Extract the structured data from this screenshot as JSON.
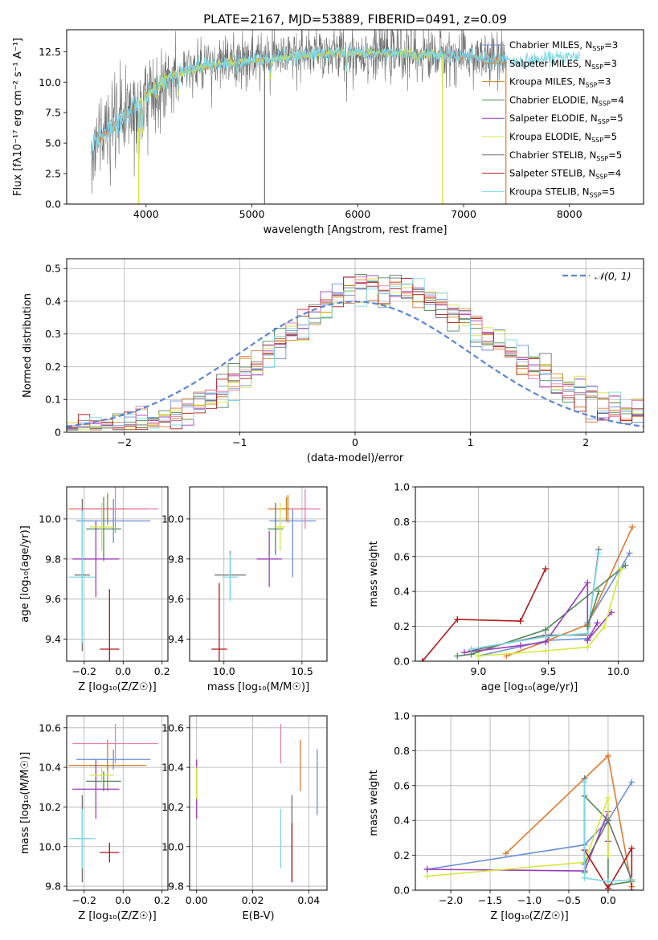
{
  "title": "PLATE=2167, MJD=53889, FIBERID=0491, z=0.09",
  "colors": {
    "Chabrier MILES": "#6a8fd8",
    "Salpeter MILES": "#e07a30",
    "Kroupa MILES": "#c48a1c",
    "Chabrier ELODIE": "#4d8a5a",
    "Salpeter ELODIE": "#9b3bbd",
    "Kroupa ELODIE": "#d4ea3a",
    "Chabrier STELIB": "#6e6e6e",
    "Salpeter STELIB": "#b01818",
    "Kroupa STELIB": "#7dd8e6",
    "normal": "#5b86d6",
    "extra_pink": "#e880a8"
  },
  "legend": [
    {
      "model": "Chabrier MILES",
      "label": "Chabrier MILES, N",
      "sub": "SSP",
      "eq": "=3"
    },
    {
      "model": "Salpeter MILES",
      "label": "Salpeter MILES, N",
      "sub": "SSP",
      "eq": "=3"
    },
    {
      "model": "Kroupa MILES",
      "label": "Kroupa MILES, N",
      "sub": "SSP",
      "eq": "=3"
    },
    {
      "model": "Chabrier ELODIE",
      "label": "Chabrier ELODIE, N",
      "sub": "SSP",
      "eq": "=4"
    },
    {
      "model": "Salpeter ELODIE",
      "label": "Salpeter ELODIE, N",
      "sub": "SSP",
      "eq": "=5"
    },
    {
      "model": "Kroupa ELODIE",
      "label": "Kroupa ELODIE, N",
      "sub": "SSP",
      "eq": "=5"
    },
    {
      "model": "Chabrier STELIB",
      "label": "Chabrier STELIB, N",
      "sub": "SSP",
      "eq": "=5"
    },
    {
      "model": "Salpeter STELIB",
      "label": "Salpeter STELIB, N",
      "sub": "SSP",
      "eq": "=4"
    },
    {
      "model": "Kroupa STELIB",
      "label": "Kroupa STELIB, N",
      "sub": "SSP",
      "eq": "=5"
    }
  ],
  "chart_data": [
    {
      "id": "spectrum",
      "type": "line",
      "xlabel": "wavelength [Angstrom, rest frame]",
      "ylabel": "Flux [fλ10⁻¹⁷ erg cm⁻² s⁻¹ A⁻¹]",
      "xlim": [
        3250,
        8700
      ],
      "ylim": [
        0,
        14.3
      ],
      "xticks": [
        4000,
        5000,
        6000,
        7000,
        8000
      ],
      "yticks": [
        0.0,
        2.5,
        5.0,
        7.5,
        10.0,
        12.5
      ],
      "grid": false,
      "legend_position": "right",
      "continuum_knots": {
        "x": [
          3500,
          3600,
          3700,
          3800,
          3900,
          4000,
          4200,
          4400,
          4700,
          5000,
          5300,
          5600,
          6000,
          6300,
          6600,
          6900,
          7200,
          7500,
          7800,
          8100,
          8300
        ],
        "y": [
          5.0,
          5.8,
          6.5,
          7.2,
          8.0,
          9.0,
          10.4,
          11.0,
          11.5,
          11.8,
          12.0,
          12.3,
          12.4,
          12.4,
          12.3,
          12.2,
          11.9,
          11.7,
          11.9,
          12.2,
          12.4
        ]
      },
      "absorption_features": [
        {
          "x": 3934,
          "depth": 3.2
        },
        {
          "x": 3968,
          "depth": 2.5
        },
        {
          "x": 4101,
          "depth": 1.0
        },
        {
          "x": 4304,
          "depth": 1.6
        },
        {
          "x": 4861,
          "depth": 1.0
        },
        {
          "x": 5175,
          "depth": 1.6
        },
        {
          "x": 5893,
          "depth": 1.4
        },
        {
          "x": 6563,
          "depth": 0.8
        }
      ],
      "series": [
        {
          "name": "observed",
          "color": "#6e6e6e",
          "xrange": [
            3480,
            7400
          ],
          "noise": 1.1
        },
        {
          "name": "Chabrier MILES",
          "color": "#6a8fd8",
          "xrange": [
            3540,
            7400
          ],
          "noise": 0.15
        },
        {
          "name": "Salpeter MILES",
          "color": "#e07a30",
          "xrange": [
            3540,
            7400
          ],
          "noise": 0.15
        },
        {
          "name": "Kroupa ELODIE",
          "color": "#d4ea3a",
          "xrange": [
            3900,
            6800
          ],
          "noise": 0.18
        },
        {
          "name": "Kroupa STELIB",
          "color": "#7dd8e6",
          "xrange": [
            3480,
            8100
          ],
          "noise": 0.3
        }
      ],
      "outlier_lines": [
        {
          "x": 5120,
          "y_bottom": 0.0,
          "color": "#6e6e6e"
        },
        {
          "x": 6800,
          "y_bottom": 0.0,
          "color": "#d4ea3a"
        },
        {
          "x": 7400,
          "y_bottom": 0.0,
          "color": "#e07a30"
        },
        {
          "x": 3930,
          "y_bottom": 0.0,
          "color": "#d4ea3a"
        }
      ]
    },
    {
      "id": "residuals",
      "type": "line",
      "xlabel": "(data-model)/error",
      "ylabel": "Normed distribution",
      "xlim": [
        -2.5,
        2.5
      ],
      "ylim": [
        0,
        0.53
      ],
      "xticks": [
        -2,
        -1,
        0,
        1,
        2
      ],
      "yticks": [
        0.0,
        0.1,
        0.2,
        0.3,
        0.4,
        0.5
      ],
      "grid": true,
      "legend": [
        {
          "label": "𝒩(0, 1)",
          "color": "#5b86d6",
          "style": "dashed"
        }
      ],
      "legend_position": "top-right",
      "bin_width": 0.1,
      "center_shift": 0.2,
      "sigma": 1.0,
      "peak": 0.45,
      "series_colors": [
        "#6a8fd8",
        "#e07a30",
        "#c48a1c",
        "#4d8a5a",
        "#9b3bbd",
        "#d4ea3a",
        "#6e6e6e",
        "#b01818",
        "#7dd8e6",
        "#e880a8"
      ]
    },
    {
      "id": "age_vs_Z",
      "type": "scatter",
      "xlabel": "Z [log₁₀(Z/Z☉)]",
      "ylabel": "age  [log₁₀(age/yr)]",
      "xlim": [
        -0.29,
        0.23
      ],
      "ylim": [
        9.29,
        10.16
      ],
      "xticks": [
        -0.2,
        0.0,
        0.2
      ],
      "yticks": [
        9.4,
        9.6,
        9.8,
        10.0
      ],
      "grid": true,
      "points": [
        {
          "x": -0.05,
          "y": 9.99,
          "xerr": 0.19,
          "yerr": 0.11,
          "color": "#6a8fd8",
          "y_lo": 9.71
        },
        {
          "x": -0.08,
          "y": 10.05,
          "xerr": 0.2,
          "yerr": 0.07,
          "color": "#e07a30"
        },
        {
          "x": -0.08,
          "y": 10.05,
          "xerr": 0.09,
          "yerr": 0.08,
          "color": "#c48a1c"
        },
        {
          "x": -0.1,
          "y": 9.95,
          "xerr": 0.09,
          "yerr": 0.16,
          "color": "#4d8a5a"
        },
        {
          "x": -0.14,
          "y": 9.8,
          "xerr": 0.12,
          "yerr": 0.19,
          "color": "#9b3bbd"
        },
        {
          "x": -0.11,
          "y": 9.96,
          "xerr": 0.06,
          "yerr": 0.12,
          "color": "#d4ea3a"
        },
        {
          "x": -0.21,
          "y": 9.72,
          "xerr": 0.04,
          "yerr": 0.38,
          "color": "#6e6e6e"
        },
        {
          "x": -0.07,
          "y": 9.35,
          "xerr": 0.05,
          "yerr": 0.3,
          "color": "#b01818"
        },
        {
          "x": -0.21,
          "y": 9.71,
          "xerr": 0.07,
          "yerr": 0.33,
          "color": "#7dd8e6"
        },
        {
          "x": -0.04,
          "y": 10.05,
          "xerr": 0.22,
          "yerr": 0.12,
          "color": "#e880a8"
        }
      ]
    },
    {
      "id": "age_vs_mass",
      "type": "scatter",
      "xlabel": "mass [log₁₀(M/M☉)]",
      "ylabel": "",
      "xlim": [
        9.78,
        10.66
      ],
      "ylim": [
        9.29,
        10.16
      ],
      "xticks": [
        10.0,
        10.5
      ],
      "yticks": [
        9.4,
        9.6,
        9.8,
        10.0
      ],
      "grid": true,
      "points": [
        {
          "x": 10.44,
          "y": 9.99,
          "xerr": 0.15,
          "yerr": 0.28,
          "color": "#6a8fd8",
          "asym_y": [
            0.28,
            0.06
          ]
        },
        {
          "x": 10.41,
          "y": 10.05,
          "xerr": 0.13,
          "yerr": 0.07,
          "color": "#e07a30"
        },
        {
          "x": 10.4,
          "y": 10.05,
          "xerr": 0.03,
          "yerr": 0.06,
          "color": "#c48a1c"
        },
        {
          "x": 10.33,
          "y": 9.95,
          "xerr": 0.05,
          "yerr": 0.13,
          "color": "#4d8a5a"
        },
        {
          "x": 10.29,
          "y": 9.8,
          "xerr": 0.08,
          "yerr": 0.14,
          "color": "#9b3bbd"
        },
        {
          "x": 10.36,
          "y": 9.96,
          "xerr": 0.03,
          "yerr": 0.12,
          "color": "#d4ea3a"
        },
        {
          "x": 10.04,
          "y": 9.72,
          "xerr": 0.1,
          "yerr": 0.12,
          "color": "#6e6e6e"
        },
        {
          "x": 9.97,
          "y": 9.35,
          "xerr": 0.05,
          "yerr": 0.33,
          "color": "#b01818"
        },
        {
          "x": 10.04,
          "y": 9.71,
          "xerr": 0.05,
          "yerr": 0.12,
          "color": "#7dd8e6"
        },
        {
          "x": 10.52,
          "y": 10.05,
          "xerr": 0.1,
          "yerr": 0.1,
          "color": "#e880a8"
        }
      ]
    },
    {
      "id": "weight_vs_age",
      "type": "line",
      "xlabel": "age  [log₁₀(age/yr)]",
      "ylabel": "mass weight",
      "xlim": [
        8.55,
        10.18
      ],
      "ylim": [
        0,
        1.0
      ],
      "xticks": [
        9.0,
        9.5,
        10.0
      ],
      "yticks": [
        0.0,
        0.2,
        0.4,
        0.6,
        0.8,
        1.0
      ],
      "grid": true,
      "series": [
        {
          "name": "Chabrier MILES",
          "color": "#6a8fd8",
          "x": [
            9.0,
            9.5,
            9.78,
            9.78,
            10.08
          ],
          "y": [
            0.03,
            0.12,
            0.13,
            0.22,
            0.62
          ]
        },
        {
          "name": "Salpeter MILES",
          "color": "#e07a30",
          "x": [
            9.2,
            9.5,
            9.78,
            10.1
          ],
          "y": [
            0.03,
            0.12,
            0.21,
            0.77
          ]
        },
        {
          "name": "Chabrier ELODIE",
          "color": "#4d8a5a",
          "x": [
            8.85,
            8.95,
            9.48,
            10.05
          ],
          "y": [
            0.03,
            0.04,
            0.18,
            0.55
          ]
        },
        {
          "name": "Salpeter ELODIE",
          "color": "#9b3bbd",
          "x": [
            8.9,
            9.3,
            9.48,
            9.78,
            9.78,
            9.95
          ],
          "y": [
            0.05,
            0.09,
            0.11,
            0.45,
            0.12,
            0.28
          ]
        },
        {
          "name": "Kroupa ELODIE",
          "color": "#d4ea3a",
          "x": [
            9.0,
            9.48,
            9.78,
            9.9,
            10.02
          ],
          "y": [
            0.03,
            0.06,
            0.08,
            0.2,
            0.53
          ]
        },
        {
          "name": "Chabrier STELIB",
          "color": "#6e6e6e",
          "x": [
            8.95,
            9.48,
            9.78,
            9.86
          ],
          "y": [
            0.06,
            0.15,
            0.15,
            0.64
          ]
        },
        {
          "name": "Salpeter STELIB",
          "color": "#b01818",
          "x": [
            8.6,
            8.85,
            9.3,
            9.48
          ],
          "y": [
            0.0,
            0.24,
            0.23,
            0.53
          ]
        },
        {
          "name": "Kroupa STELIB",
          "color": "#7dd8e6",
          "x": [
            8.95,
            9.48,
            9.78,
            9.86
          ],
          "y": [
            0.07,
            0.14,
            0.16,
            0.62
          ]
        },
        {
          "name": "Salpeter ELODIE b",
          "color": "#9b3bbd",
          "x": [
            9.78,
            9.85
          ],
          "y": [
            0.12,
            0.22
          ]
        },
        {
          "name": "Chabrier ELODIE b",
          "color": "#4d8a5a",
          "x": [
            9.78,
            9.86
          ],
          "y": [
            0.2,
            0.4
          ]
        }
      ]
    },
    {
      "id": "mass_vs_Z",
      "type": "scatter",
      "xlabel": "Z [log₁₀(Z/Z☉)]",
      "ylabel": "mass [log₁₀(M/M☉)]",
      "xlim": [
        -0.29,
        0.23
      ],
      "ylim": [
        9.78,
        10.66
      ],
      "xticks": [
        -0.2,
        0.0,
        0.2
      ],
      "yticks": [
        9.8,
        10.0,
        10.2,
        10.4,
        10.6
      ],
      "grid": true,
      "points": [
        {
          "x": -0.05,
          "y": 10.44,
          "xerr": 0.19,
          "yerr": 0.05,
          "color": "#6a8fd8"
        },
        {
          "x": -0.08,
          "y": 10.41,
          "xerr": 0.2,
          "yerr": 0.13,
          "color": "#e07a30"
        },
        {
          "x": -0.08,
          "y": 10.41,
          "xerr": 0.09,
          "yerr": 0.03,
          "color": "#c48a1c"
        },
        {
          "x": -0.1,
          "y": 10.33,
          "xerr": 0.09,
          "yerr": 0.05,
          "color": "#4d8a5a"
        },
        {
          "x": -0.14,
          "y": 10.29,
          "xerr": 0.12,
          "yerr": 0.15,
          "color": "#9b3bbd"
        },
        {
          "x": -0.11,
          "y": 10.36,
          "xerr": 0.06,
          "yerr": 0.04,
          "color": "#d4ea3a"
        },
        {
          "x": -0.21,
          "y": 10.04,
          "xerr": 0.04,
          "yerr": 0.22,
          "color": "#6e6e6e"
        },
        {
          "x": -0.07,
          "y": 9.97,
          "xerr": 0.05,
          "yerr": 0.05,
          "color": "#b01818"
        },
        {
          "x": -0.21,
          "y": 10.04,
          "xerr": 0.07,
          "yerr": 0.15,
          "color": "#7dd8e6"
        },
        {
          "x": -0.04,
          "y": 10.52,
          "xerr": 0.22,
          "yerr": 0.1,
          "color": "#e880a8"
        }
      ]
    },
    {
      "id": "mass_vs_ebv",
      "type": "scatter",
      "xlabel": "E(B-V)",
      "ylabel": "",
      "xlim": [
        -0.0025,
        0.0465
      ],
      "ylim": [
        9.78,
        10.66
      ],
      "xticks": [
        0.0,
        0.02,
        0.04
      ],
      "yticks": [
        9.8,
        10.0,
        10.2,
        10.4,
        10.6
      ],
      "grid": true,
      "points": [
        {
          "x": 0.043,
          "y": 10.44,
          "xerr": 0.0,
          "yerr": 0.05,
          "color": "#6a8fd8",
          "asym_y": [
            0.28,
            0.05
          ]
        },
        {
          "x": 0.037,
          "y": 10.41,
          "xerr": 0.0,
          "yerr": 0.13,
          "color": "#e07a30"
        },
        {
          "x": 0.0,
          "y": 10.33,
          "xerr": 0.0,
          "yerr": 0.05,
          "color": "#4d8a5a"
        },
        {
          "x": 0.0,
          "y": 10.29,
          "xerr": 0.0,
          "yerr": 0.15,
          "color": "#9b3bbd"
        },
        {
          "x": 0.0,
          "y": 10.36,
          "xerr": 0.0,
          "yerr": 0.04,
          "color": "#d4ea3a",
          "asym_y": [
            0.12,
            0.04
          ]
        },
        {
          "x": 0.034,
          "y": 10.04,
          "xerr": 0.0,
          "yerr": 0.22,
          "color": "#6e6e6e"
        },
        {
          "x": 0.034,
          "y": 9.97,
          "xerr": 0.0,
          "yerr": 0.15,
          "color": "#b01818"
        },
        {
          "x": 0.03,
          "y": 10.04,
          "xerr": 0.0,
          "yerr": 0.15,
          "color": "#7dd8e6"
        },
        {
          "x": 0.03,
          "y": 10.52,
          "xerr": 0.0,
          "yerr": 0.1,
          "color": "#e880a8"
        }
      ]
    },
    {
      "id": "weight_vs_Z",
      "type": "line",
      "xlabel": "Z [log₁₀(Z/Z☉)]",
      "ylabel": "mass weight",
      "xlim": [
        -2.45,
        0.45
      ],
      "ylim": [
        0,
        1.0
      ],
      "xticks": [
        -2.0,
        -1.5,
        -1.0,
        -0.5,
        0.0
      ],
      "yticks": [
        0.0,
        0.2,
        0.4,
        0.6,
        0.8,
        1.0
      ],
      "grid": true,
      "series": [
        {
          "name": "Chabrier MILES",
          "color": "#6a8fd8",
          "x": [
            -2.3,
            -0.3,
            0.0,
            0.3
          ],
          "y": [
            0.12,
            0.26,
            0.4,
            0.62
          ]
        },
        {
          "name": "Salpeter MILES",
          "color": "#e07a30",
          "x": [
            -1.3,
            0.0,
            0.0,
            0.3
          ],
          "y": [
            0.21,
            0.77,
            0.77,
            0.02
          ]
        },
        {
          "name": "Chabrier ELODIE",
          "color": "#4d8a5a",
          "x": [
            -0.3,
            -0.3,
            0.0,
            0.0,
            0.3
          ],
          "y": [
            0.1,
            0.54,
            0.4,
            0.03,
            0.05
          ]
        },
        {
          "name": "Salpeter ELODIE",
          "color": "#9b3bbd",
          "x": [
            -2.3,
            -0.3,
            0.0,
            0.0
          ],
          "y": [
            0.12,
            0.11,
            0.45,
            0.28
          ]
        },
        {
          "name": "Kroupa ELODIE",
          "color": "#d4ea3a",
          "x": [
            -2.3,
            -0.3,
            0.0,
            0.0
          ],
          "y": [
            0.08,
            0.16,
            0.53,
            0.2
          ]
        },
        {
          "name": "Chabrier STELIB",
          "color": "#6e6e6e",
          "x": [
            -0.3,
            -0.3,
            0.0,
            0.3
          ],
          "y": [
            0.64,
            0.15,
            0.4,
            0.06
          ]
        },
        {
          "name": "Salpeter STELIB",
          "color": "#b01818",
          "x": [
            -0.3,
            0.0,
            0.3,
            0.3
          ],
          "y": [
            0.23,
            0.01,
            0.24,
            0.0
          ]
        },
        {
          "name": "Kroupa STELIB",
          "color": "#7dd8e6",
          "x": [
            -0.3,
            -0.3,
            0.0,
            0.3
          ],
          "y": [
            0.62,
            0.07,
            0.05,
            0.06
          ]
        }
      ]
    }
  ]
}
